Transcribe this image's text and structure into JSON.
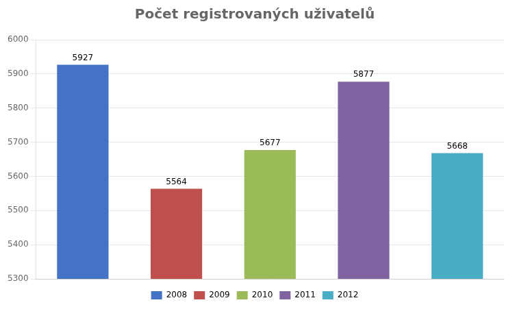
{
  "chart_data": {
    "type": "bar",
    "title": "Počet registrovaných uživatelů",
    "categories": [
      "2008",
      "2009",
      "2010",
      "2011",
      "2012"
    ],
    "values": [
      5927,
      5564,
      5677,
      5877,
      5668
    ],
    "colors": [
      "#4472C4",
      "#C0504D",
      "#9BBB59",
      "#8064A2",
      "#4BACC6"
    ],
    "ylim": [
      5300,
      6000
    ],
    "yticks": [
      5300,
      5400,
      5500,
      5600,
      5700,
      5800,
      5900,
      6000
    ],
    "grid": true,
    "data_labels": true,
    "tick_labels": "y",
    "legend": "bottom"
  }
}
